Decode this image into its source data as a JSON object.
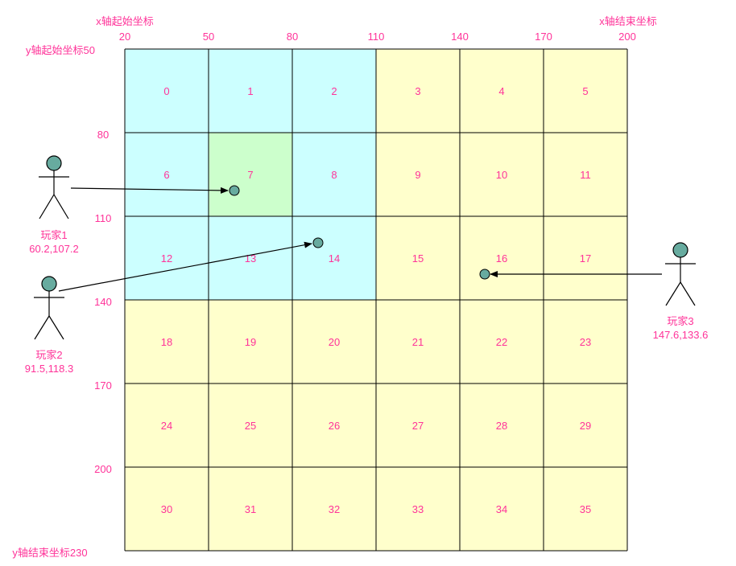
{
  "colors": {
    "text_accent": "#ff3399",
    "cell_cyan": "#ccffff",
    "cell_green": "#ccffcc",
    "cell_yellow": "#ffffcc",
    "grid_line": "#000000",
    "player_fill": "#67ab9f",
    "player_stroke": "#000000"
  },
  "x_axis": {
    "start_title": "x轴起始坐标",
    "end_title": "x轴结束坐标",
    "ticks": [
      "20",
      "50",
      "80",
      "110",
      "140",
      "170",
      "200"
    ]
  },
  "y_axis": {
    "start_title": "y轴起始坐标50",
    "end_title": "y轴结束坐标230",
    "ticks": [
      "80",
      "110",
      "140",
      "170",
      "200"
    ]
  },
  "grid": {
    "cols": 6,
    "rows": 6,
    "cells": [
      {
        "id": "0",
        "fill": "cyan"
      },
      {
        "id": "1",
        "fill": "cyan"
      },
      {
        "id": "2",
        "fill": "cyan"
      },
      {
        "id": "3",
        "fill": "yellow"
      },
      {
        "id": "4",
        "fill": "yellow"
      },
      {
        "id": "5",
        "fill": "yellow"
      },
      {
        "id": "6",
        "fill": "cyan"
      },
      {
        "id": "7",
        "fill": "green"
      },
      {
        "id": "8",
        "fill": "cyan"
      },
      {
        "id": "9",
        "fill": "yellow"
      },
      {
        "id": "10",
        "fill": "yellow"
      },
      {
        "id": "11",
        "fill": "yellow"
      },
      {
        "id": "12",
        "fill": "cyan"
      },
      {
        "id": "13",
        "fill": "cyan"
      },
      {
        "id": "14",
        "fill": "cyan"
      },
      {
        "id": "15",
        "fill": "yellow"
      },
      {
        "id": "16",
        "fill": "yellow"
      },
      {
        "id": "17",
        "fill": "yellow"
      },
      {
        "id": "18",
        "fill": "yellow"
      },
      {
        "id": "19",
        "fill": "yellow"
      },
      {
        "id": "20",
        "fill": "yellow"
      },
      {
        "id": "21",
        "fill": "yellow"
      },
      {
        "id": "22",
        "fill": "yellow"
      },
      {
        "id": "23",
        "fill": "yellow"
      },
      {
        "id": "24",
        "fill": "yellow"
      },
      {
        "id": "25",
        "fill": "yellow"
      },
      {
        "id": "26",
        "fill": "yellow"
      },
      {
        "id": "27",
        "fill": "yellow"
      },
      {
        "id": "28",
        "fill": "yellow"
      },
      {
        "id": "29",
        "fill": "yellow"
      },
      {
        "id": "30",
        "fill": "yellow"
      },
      {
        "id": "31",
        "fill": "yellow"
      },
      {
        "id": "32",
        "fill": "yellow"
      },
      {
        "id": "33",
        "fill": "yellow"
      },
      {
        "id": "34",
        "fill": "yellow"
      },
      {
        "id": "35",
        "fill": "yellow"
      }
    ]
  },
  "players": [
    {
      "name": "玩家1",
      "coords": "60.2,107.2",
      "icon": "stick-figure-icon"
    },
    {
      "name": "玩家2",
      "coords": "91.5,118.3",
      "icon": "stick-figure-icon"
    },
    {
      "name": "玩家3",
      "coords": "147.6,133.6",
      "icon": "stick-figure-icon"
    }
  ]
}
